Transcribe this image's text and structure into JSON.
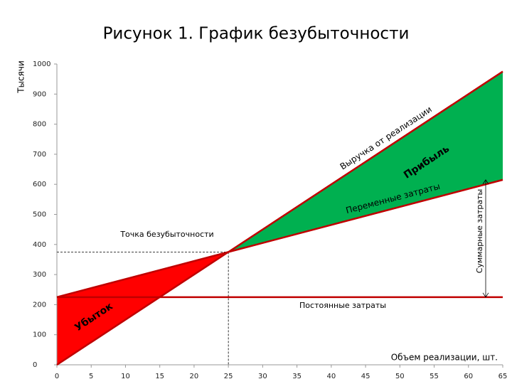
{
  "chart_data": {
    "type": "line",
    "title": "Рисунок 1. График безубыточности",
    "y_label": "Тысячи",
    "x_label": "Объем реализации, шт.",
    "x": [
      0,
      25,
      65
    ],
    "series": [
      {
        "name": "Выручка от реализации",
        "color": "#c00000",
        "values": [
          0,
          375,
          975
        ]
      },
      {
        "name": "Переменные затраты",
        "color": "#c00000",
        "values": [
          225,
          375,
          615
        ]
      },
      {
        "name": "Постоянные затраты",
        "color": "#c00000",
        "values": [
          225,
          225,
          225
        ]
      }
    ],
    "loss_color": "#ff0000",
    "profit_color": "#00b050",
    "annotations": {
      "break_even": "Точка безубыточности",
      "profit": "Прибыль",
      "loss": "Убыток",
      "total_costs": "Суммарные затраты"
    },
    "xlim": [
      0,
      65
    ],
    "xticks": [
      0,
      5,
      10,
      15,
      20,
      25,
      30,
      35,
      40,
      45,
      50,
      55,
      60,
      65
    ],
    "ylim": [
      0,
      1000
    ],
    "yticks": [
      0,
      100,
      200,
      300,
      400,
      500,
      600,
      700,
      800,
      900,
      1000
    ],
    "grid": false
  }
}
